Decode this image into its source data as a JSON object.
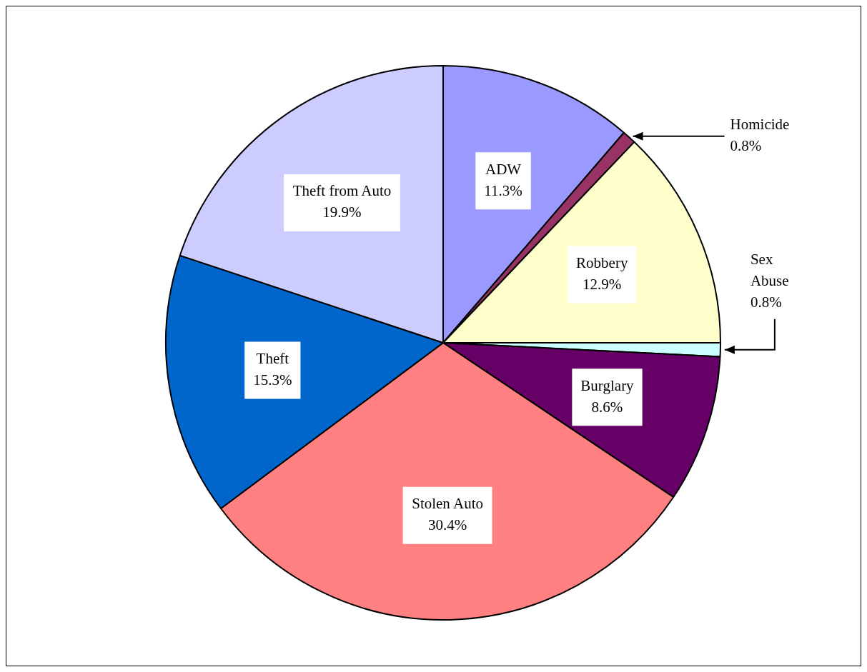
{
  "chart_data": {
    "type": "pie",
    "categories": [
      "ADW",
      "Homicide",
      "Robbery",
      "Sex Abuse",
      "Burglary",
      "Stolen Auto",
      "Theft",
      "Theft from Auto"
    ],
    "values": [
      11.3,
      0.8,
      12.9,
      0.8,
      8.6,
      30.4,
      15.3,
      19.9
    ],
    "value_labels": [
      "11.3%",
      "0.8%",
      "12.9%",
      "0.8%",
      "8.6%",
      "30.4%",
      "15.3%",
      "19.9%"
    ],
    "colors": [
      "#9999ff",
      "#993366",
      "#ffffcc",
      "#ccffff",
      "#660066",
      "#ff8080",
      "#0066cc",
      "#ccccff"
    ],
    "legend": false
  }
}
